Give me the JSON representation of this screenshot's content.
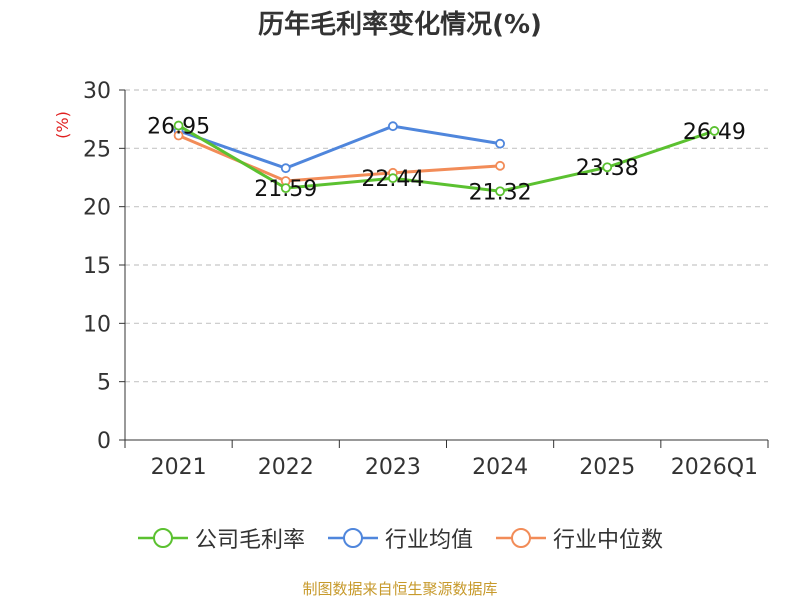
{
  "title": "历年毛利率变化情况(%)",
  "source": "制图数据来自恒生聚源数据库",
  "chart_data": {
    "type": "line",
    "title": "历年毛利率变化情况(%)",
    "ylabel": "(%)",
    "xlabel": "",
    "ylim": [
      0,
      30
    ],
    "yticks": [
      0,
      5,
      10,
      15,
      20,
      25,
      30
    ],
    "categories": [
      "2021",
      "2022",
      "2023",
      "2024",
      "2025",
      "2026Q1"
    ],
    "grid": true,
    "legend_position": "bottom",
    "series": [
      {
        "name": "公司毛利率",
        "color": "#5bc130",
        "values": [
          26.95,
          21.59,
          22.44,
          21.32,
          23.38,
          26.49
        ],
        "show_labels": true
      },
      {
        "name": "行业均值",
        "color": "#4f86dc",
        "values": [
          26.5,
          23.3,
          26.9,
          25.4,
          null,
          null
        ],
        "show_labels": false
      },
      {
        "name": "行业中位数",
        "color": "#f28c58",
        "values": [
          26.1,
          22.2,
          22.9,
          23.5,
          null,
          null
        ],
        "show_labels": false
      }
    ]
  }
}
